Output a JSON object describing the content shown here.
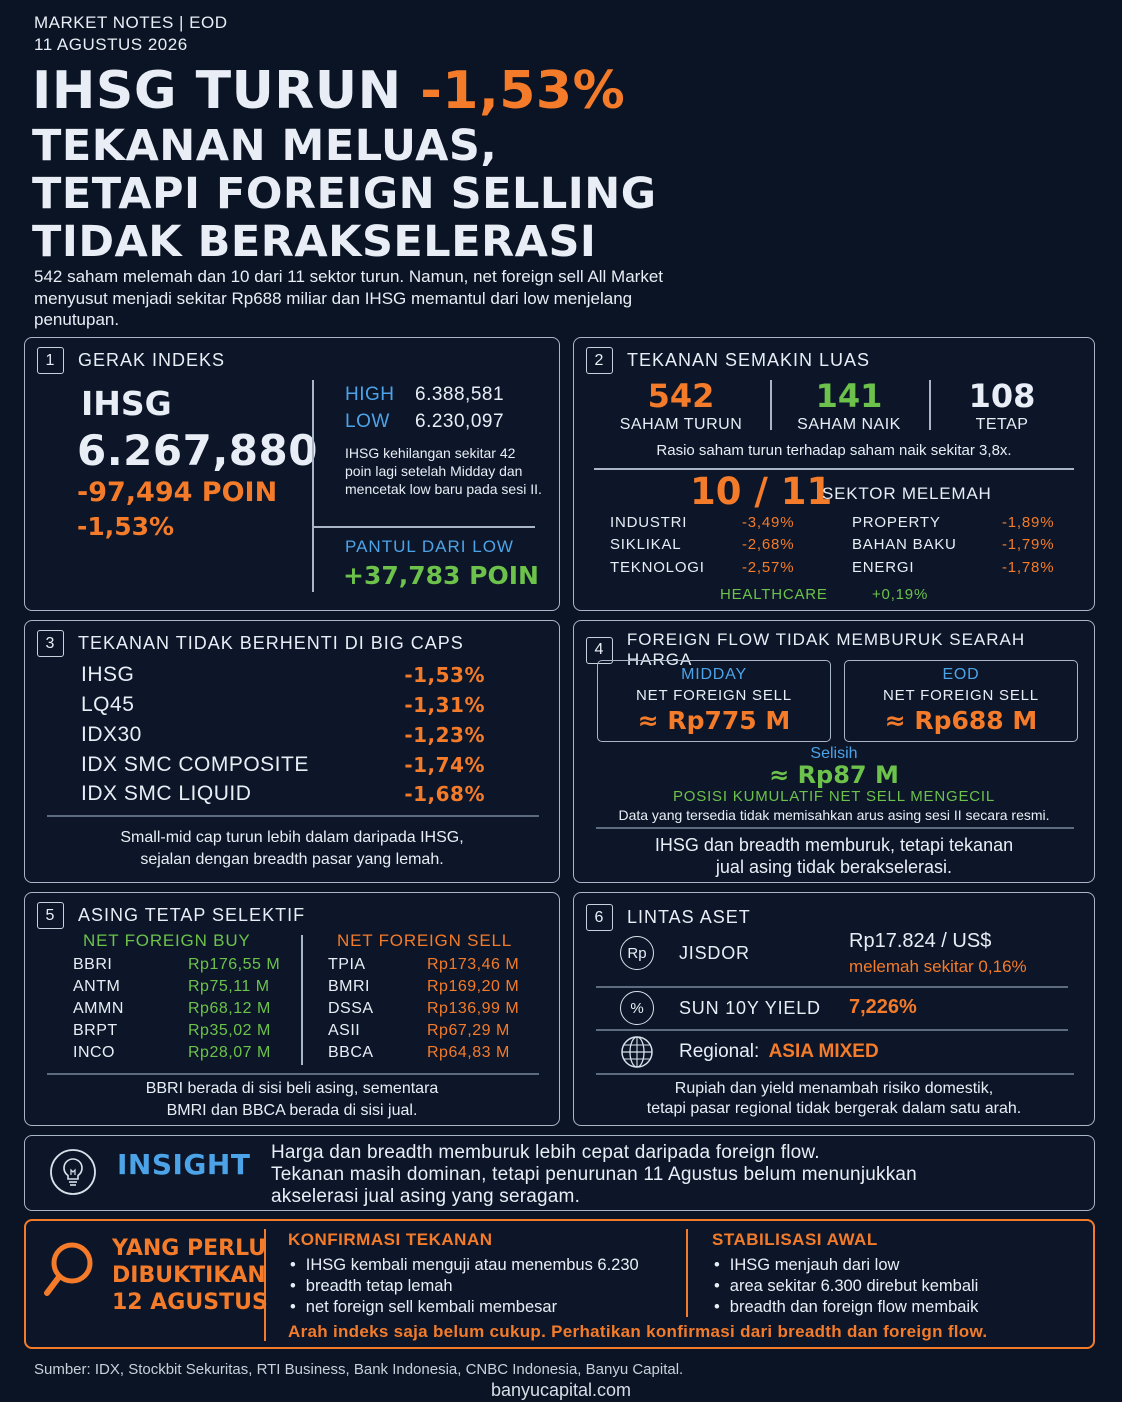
{
  "header": {
    "eyebrow1": "MARKET NOTES | EOD",
    "eyebrow2": "11 AGUSTUS 2026",
    "title_a": "IHSG TURUN ",
    "title_b": "-1,53%",
    "title_2": "TEKANAN MELUAS,",
    "title_3": "TETAPI FOREIGN SELLING",
    "title_4": "TIDAK BERAKSELERASI",
    "lede": "542 saham melemah dan 10 dari 11 sektor turun. Namun, net foreign sell All Market menyusut menjadi sekitar Rp688 miliar dan IHSG memantul dari low menjelang penutupan."
  },
  "p1": {
    "num": "1",
    "title": "GERAK INDEKS",
    "name": "IHSG",
    "value": "6.267,880",
    "change": "-97,494 POIN",
    "pct": "-1,53%",
    "high_k": "HIGH",
    "high_v": "6.388,581",
    "low_k": "LOW",
    "low_v": "6.230,097",
    "note": "IHSG kehilangan sekitar 42 poin lagi setelah Midday dan mencetak low baru pada sesi II.",
    "bounce_label": "PANTUL DARI LOW",
    "bounce_value": "+37,783 POIN"
  },
  "p2": {
    "num": "2",
    "title": "TEKANAN SEMAKIN LUAS",
    "down_n": "542",
    "down_t": "SAHAM TURUN",
    "up_n": "141",
    "up_t": "SAHAM NAIK",
    "flat_n": "108",
    "flat_t": "TETAP",
    "ratio": "Rasio saham turun terhadap saham naik sekitar 3,8x.",
    "big": "10 / 11",
    "big_label": "SEKTOR MELEMAH",
    "sectors": [
      {
        "name": "INDUSTRI",
        "value": "-3,49%"
      },
      {
        "name": "SIKLIKAL",
        "value": "-2,68%"
      },
      {
        "name": "TEKNOLOGI",
        "value": "-2,57%"
      },
      {
        "name": "PROPERTY",
        "value": "-1,89%"
      },
      {
        "name": "BAHAN BAKU",
        "value": "-1,79%"
      },
      {
        "name": "ENERGI",
        "value": "-1,78%"
      }
    ],
    "hc_name": "HEALTHCARE",
    "hc_value": "+0,19%"
  },
  "p3": {
    "num": "3",
    "title": "TEKANAN TIDAK BERHENTI DI BIG CAPS",
    "rows": [
      {
        "name": "IHSG",
        "value": "-1,53%"
      },
      {
        "name": "LQ45",
        "value": "-1,31%"
      },
      {
        "name": "IDX30",
        "value": "-1,23%"
      },
      {
        "name": "IDX SMC COMPOSITE",
        "value": "-1,74%"
      },
      {
        "name": "IDX SMC LIQUID",
        "value": "-1,68%"
      }
    ],
    "note1": "Small-mid cap turun lebih dalam daripada IHSG,",
    "note2": "sejalan dengan breadth pasar yang lemah."
  },
  "p4": {
    "num": "4",
    "title": "FOREIGN FLOW TIDAK MEMBURUK SEARAH HARGA",
    "midday_k": "MIDDAY",
    "midday_l": "NET FOREIGN SELL",
    "midday_v": "≈ Rp775 M",
    "eod_k": "EOD",
    "eod_l": "NET FOREIGN SELL",
    "eod_v": "≈ Rp688 M",
    "diff_k": "Selisih",
    "diff_v": "≈ Rp87 M",
    "pos": "POSISI KUMULATIF NET SELL MENGECIL",
    "data_note": "Data yang tersedia tidak memisahkan arus asing sesi II secara resmi.",
    "note1": "IHSG dan breadth memburuk, tetapi tekanan",
    "note2": "jual asing tidak berakselerasi."
  },
  "p5": {
    "num": "5",
    "title": "ASING TETAP SELEKTIF",
    "buy_h": "NET FOREIGN BUY",
    "sell_h": "NET FOREIGN SELL",
    "buy": [
      {
        "t": "BBRI",
        "v": "Rp176,55 M"
      },
      {
        "t": "ANTM",
        "v": "Rp75,11 M"
      },
      {
        "t": "AMMN",
        "v": "Rp68,12 M"
      },
      {
        "t": "BRPT",
        "v": "Rp35,02 M"
      },
      {
        "t": "INCO",
        "v": "Rp28,07 M"
      }
    ],
    "sell": [
      {
        "t": "TPIA",
        "v": "Rp173,46 M"
      },
      {
        "t": "BMRI",
        "v": "Rp169,20 M"
      },
      {
        "t": "DSSA",
        "v": "Rp136,99 M"
      },
      {
        "t": "ASII",
        "v": "Rp67,29 M"
      },
      {
        "t": "BBCA",
        "v": "Rp64,83 M"
      }
    ],
    "note1": "BBRI berada di sisi beli asing, sementara",
    "note2": "BMRI dan BBCA berada di sisi jual."
  },
  "p6": {
    "num": "6",
    "title": "LINTAS ASET",
    "rp_icon": "Rp",
    "jisdor_k": "JISDOR",
    "jisdor_v": "Rp17.824 / US$",
    "jisdor_n": "melemah sekitar 0,16%",
    "pct_icon": "%",
    "sun_k": "SUN 10Y YIELD",
    "sun_v": "7,226%",
    "reg_k": "Regional:",
    "reg_v": "ASIA MIXED",
    "note1": "Rupiah dan yield menambah risiko domestik,",
    "note2": "tetapi pasar regional tidak bergerak dalam satu arah."
  },
  "insight": {
    "title": "INSIGHT",
    "l1": "Harga dan breadth memburuk lebih cepat daripada foreign flow.",
    "l2": "Tekanan masih dominan, tetapi penurunan 11 Agustus belum menunjukkan",
    "l3": "akselerasi jual asing yang seragam."
  },
  "prove": {
    "t1": "YANG PERLU",
    "t2": "DIBUKTIKAN",
    "t3": "12 AGUSTUS",
    "a_h": "KONFIRMASI TEKANAN",
    "a": [
      "IHSG kembali menguji atau menembus 6.230",
      "breadth tetap lemah",
      "net foreign sell kembali membesar"
    ],
    "b_h": "STABILISASI AWAL",
    "b": [
      "IHSG menjauh dari low",
      "area sekitar 6.300 direbut kembali",
      "breadth dan foreign flow membaik"
    ],
    "foot": "Arah indeks saja belum cukup. Perhatikan konfirmasi dari breadth dan foreign flow."
  },
  "footer": {
    "source": "Sumber: IDX, Stockbit Sekuritas, RTI Business, Bank Indonesia, CNBC Indonesia, Banyu Capital.",
    "site": "banyucapital.com"
  }
}
